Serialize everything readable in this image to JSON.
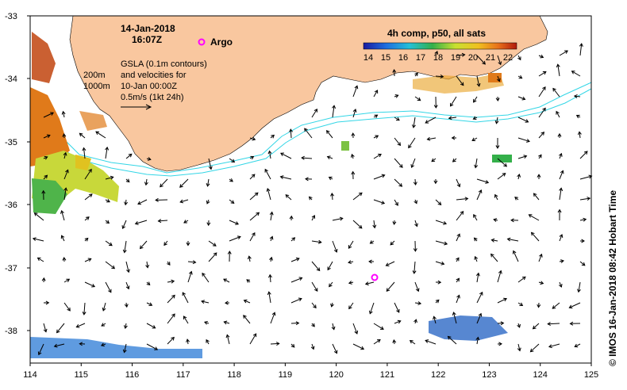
{
  "map": {
    "date": "14-Jan-2018",
    "time": "16:07Z",
    "argo_label": "Argo",
    "gsla_lines": [
      "GSLA (0.1m contours)",
      "and velocities for",
      "10-Jan 00:00Z",
      "0.5m/s (1kt 24h)"
    ],
    "depth_labels": [
      "200m",
      "1000m"
    ],
    "colorbar": {
      "title": "4h comp, p50, all sats",
      "ticks": [
        "14",
        "15",
        "16",
        "17",
        "18",
        "19",
        "20",
        "21",
        "22"
      ]
    },
    "x_ticks": [
      "114",
      "115",
      "116",
      "117",
      "118",
      "119",
      "120",
      "121",
      "122",
      "123",
      "124",
      "125"
    ],
    "y_ticks": [
      "-33",
      "-34",
      "-35",
      "-36",
      "-37",
      "-38"
    ],
    "credit": "© IMOS 16-Jan-2018 08:42 Hobart Time",
    "colors": {
      "land": "#f9c79f",
      "isobath": "#33d6e6",
      "argo": "#ff00ff"
    }
  }
}
